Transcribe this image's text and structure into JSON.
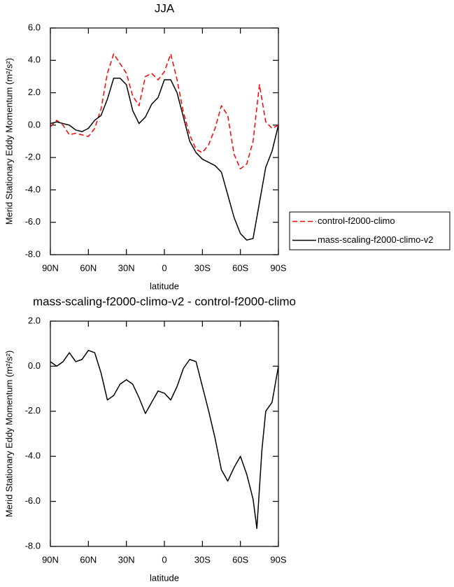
{
  "chart_data": [
    {
      "type": "line",
      "title": "JJA",
      "xlabel": "latitude",
      "ylabel": "Merid Stationary Eddy Momentum (m²/s²)",
      "x": [
        90,
        85,
        80,
        75,
        70,
        65,
        60,
        55,
        50,
        45,
        40,
        35,
        30,
        25,
        20,
        15,
        10,
        5,
        0,
        -5,
        -10,
        -15,
        -20,
        -25,
        -30,
        -35,
        -40,
        -45,
        -50,
        -55,
        -60,
        -65,
        -70,
        -75,
        -80,
        -85,
        -90
      ],
      "series": [
        {
          "name": "control-f2000-climo",
          "color": "#ff0000",
          "dashed": true,
          "values": [
            -0.1,
            0.3,
            0.0,
            -0.6,
            -0.5,
            -0.6,
            -0.7,
            -0.2,
            1.0,
            3.2,
            4.4,
            3.8,
            3.2,
            1.8,
            1.2,
            3.0,
            3.2,
            2.8,
            3.3,
            4.4,
            2.8,
            0.8,
            -0.6,
            -1.5,
            -1.7,
            -1.2,
            -0.2,
            1.2,
            0.6,
            -1.8,
            -2.7,
            -2.4,
            -1.0,
            2.5,
            0.2,
            -0.2,
            0.0
          ]
        },
        {
          "name": "mass-scaling-f2000-climo-v2",
          "color": "#000000",
          "dashed": false,
          "values": [
            0.1,
            0.2,
            0.1,
            0.0,
            -0.3,
            -0.4,
            -0.2,
            0.3,
            0.6,
            1.6,
            2.9,
            2.9,
            2.5,
            0.9,
            0.1,
            0.5,
            1.3,
            1.7,
            2.8,
            2.8,
            2.0,
            0.5,
            -1.0,
            -1.7,
            -2.1,
            -2.3,
            -2.5,
            -2.9,
            -4.3,
            -5.7,
            -6.7,
            -7.1,
            -7.0,
            -4.8,
            -2.6,
            -1.6,
            0.0
          ]
        }
      ],
      "xlim": [
        90,
        -90
      ],
      "xticks": [
        {
          "value": 90,
          "label": "90N"
        },
        {
          "value": 60,
          "label": "60N"
        },
        {
          "value": 30,
          "label": "30N"
        },
        0,
        {
          "value": -30,
          "label": "30S"
        },
        {
          "value": -60,
          "label": "60S"
        },
        {
          "value": -90,
          "label": "90S"
        }
      ],
      "ylim": [
        -8,
        6
      ],
      "yticks": [
        {
          "value": 6,
          "label": "6.0"
        },
        {
          "value": 4,
          "label": "4.0"
        },
        {
          "value": 2,
          "label": "2.0"
        },
        {
          "value": 0,
          "label": "0.0"
        },
        {
          "value": -2,
          "label": "-2.0"
        },
        {
          "value": -4,
          "label": "-4.0"
        },
        {
          "value": -6,
          "label": "-6.0"
        },
        {
          "value": -8,
          "label": "-8.0"
        }
      ]
    },
    {
      "type": "line",
      "title": "mass-scaling-f2000-climo-v2 - control-f2000-climo",
      "xlabel": "latitude",
      "ylabel": "Merid Stationary Eddy Momentum (m²/s²)",
      "x": [
        90,
        85,
        80,
        75,
        70,
        65,
        60,
        55,
        50,
        45,
        40,
        35,
        30,
        25,
        20,
        15,
        10,
        5,
        0,
        -5,
        -10,
        -15,
        -20,
        -25,
        -30,
        -35,
        -40,
        -45,
        -50,
        -55,
        -60,
        -65,
        -70,
        -73,
        -77,
        -80,
        -85,
        -90
      ],
      "values": [
        0.2,
        0.0,
        0.2,
        0.6,
        0.2,
        0.3,
        0.7,
        0.6,
        -0.3,
        -1.5,
        -1.3,
        -0.8,
        -0.6,
        -0.8,
        -1.4,
        -2.1,
        -1.6,
        -1.1,
        -1.2,
        -1.5,
        -0.9,
        -0.1,
        0.3,
        0.2,
        -0.9,
        -2.0,
        -3.2,
        -4.6,
        -5.1,
        -4.5,
        -4.0,
        -4.8,
        -5.9,
        -7.2,
        -3.7,
        -2.0,
        -1.6,
        0.0
      ],
      "color": "#000000",
      "xlim": [
        90,
        -90
      ],
      "xticks": [
        {
          "value": 90,
          "label": "90N"
        },
        {
          "value": 60,
          "label": "60N"
        },
        {
          "value": 30,
          "label": "30N"
        },
        0,
        {
          "value": -30,
          "label": "30S"
        },
        {
          "value": -60,
          "label": "60S"
        },
        {
          "value": -90,
          "label": "90S"
        }
      ],
      "ylim": [
        -8,
        2
      ],
      "yticks": [
        {
          "value": 2,
          "label": "2.0"
        },
        {
          "value": 0,
          "label": "0.0"
        },
        {
          "value": -2,
          "label": "-2.0"
        },
        {
          "value": -4,
          "label": "-4.0"
        },
        {
          "value": -6,
          "label": "-6.0"
        },
        {
          "value": -8,
          "label": "-8.0"
        }
      ]
    }
  ]
}
